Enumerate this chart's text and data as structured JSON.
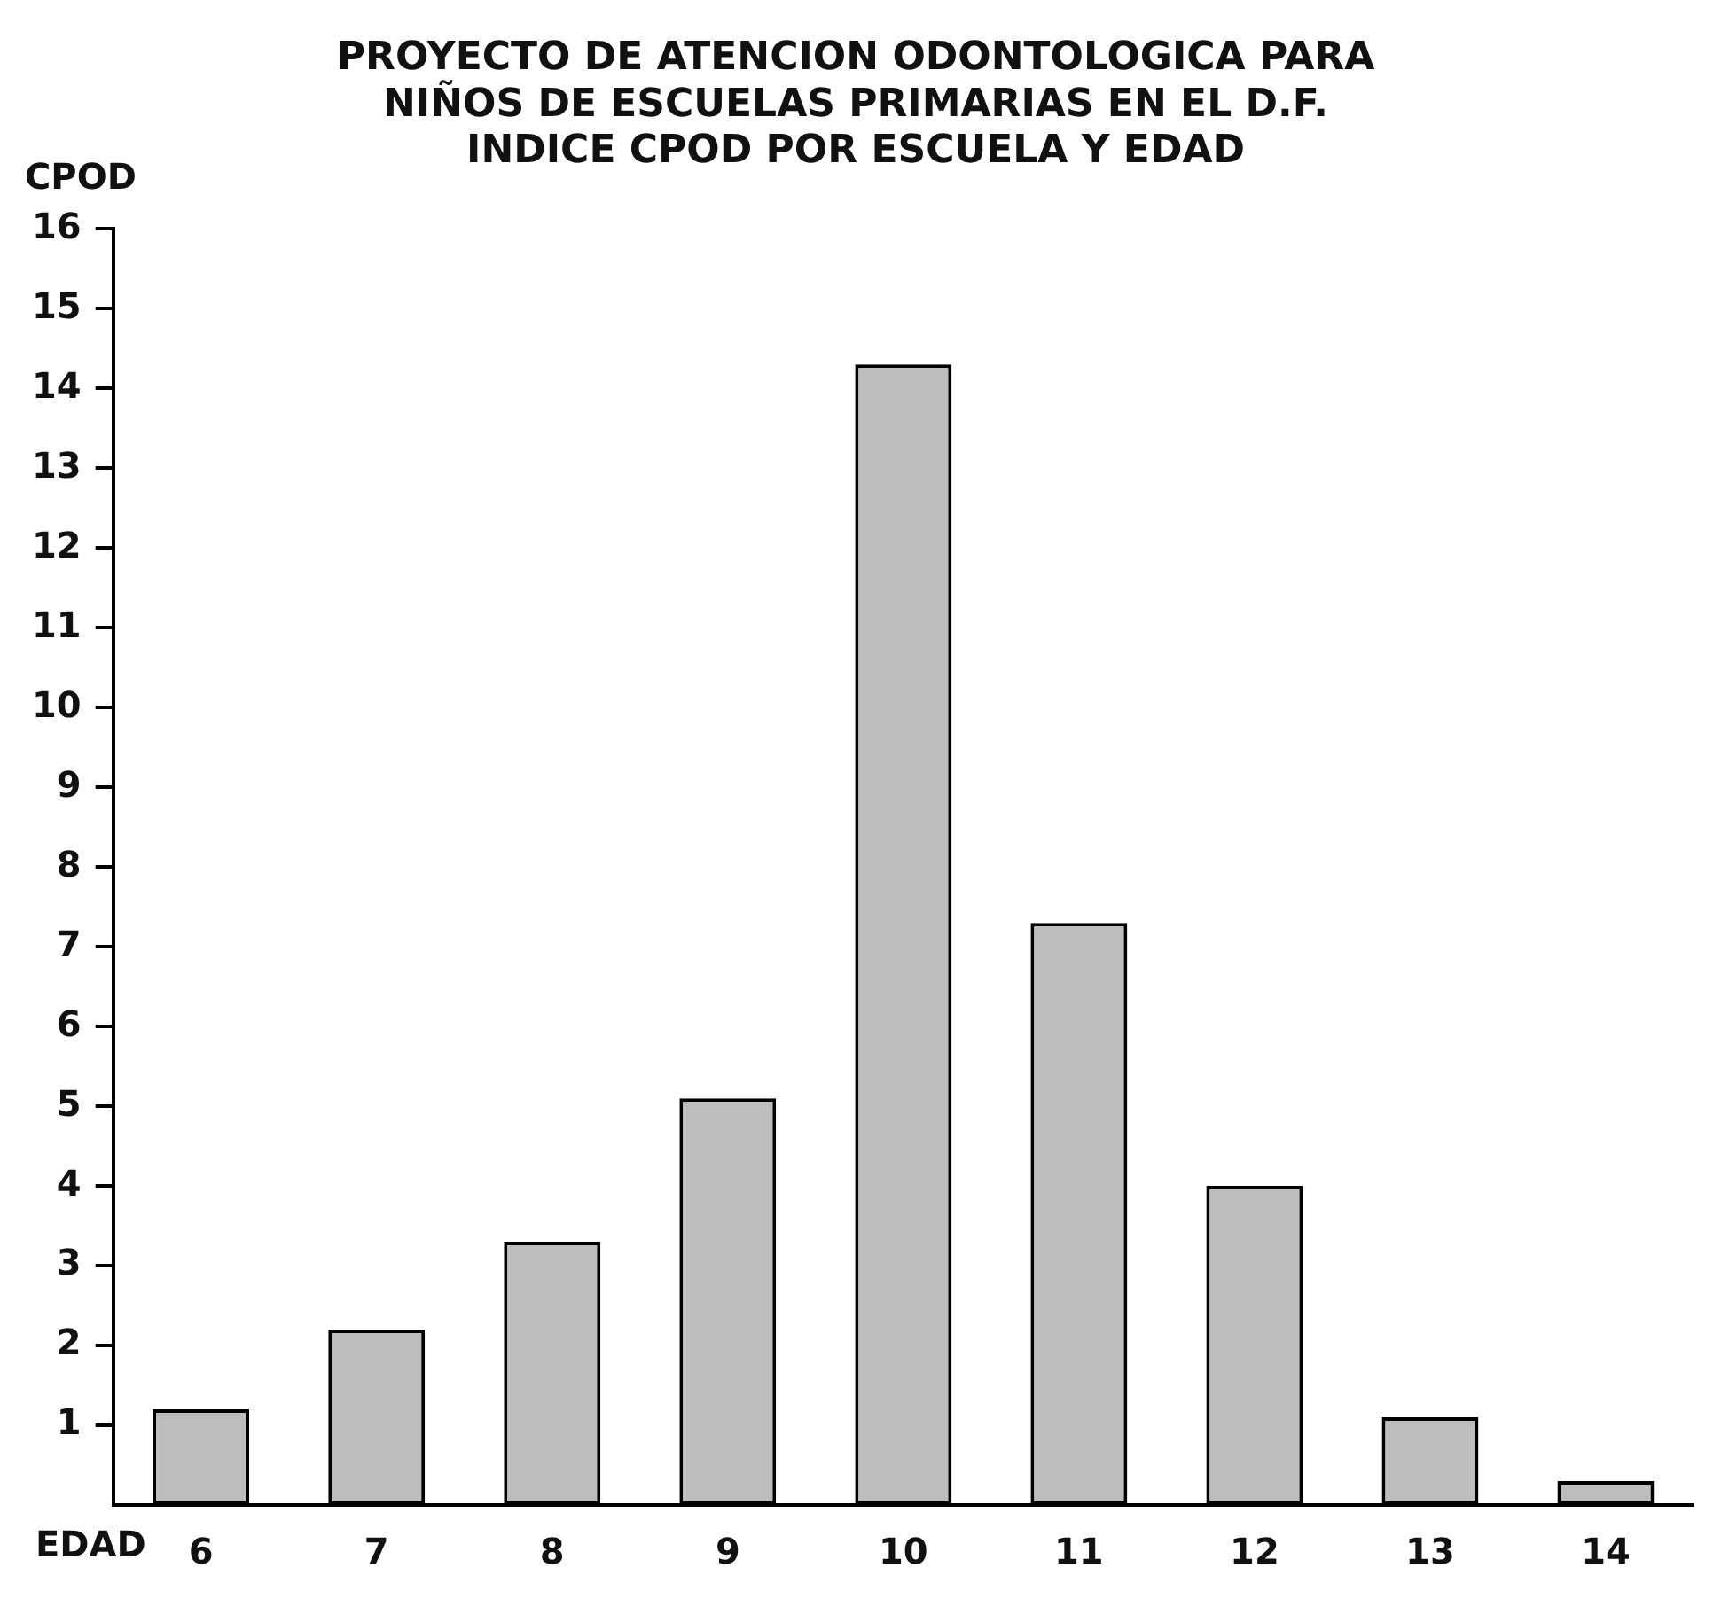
{
  "chart_data": {
    "type": "bar",
    "title": [
      "PROYECTO DE ATENCION ODONTOLOGICA PARA",
      "NIÑOS DE ESCUELAS PRIMARIAS EN EL D.F.",
      "INDICE CPOD POR ESCUELA Y EDAD"
    ],
    "xlabel": "EDAD",
    "ylabel": "CPOD",
    "categories": [
      "6",
      "7",
      "8",
      "9",
      "10",
      "11",
      "12",
      "13",
      "14"
    ],
    "values": [
      1.2,
      2.2,
      3.3,
      5.1,
      14.3,
      7.3,
      4.0,
      1.1,
      0.3
    ],
    "color": "#bdbdbd",
    "ylim": [
      0,
      16
    ],
    "yticks": [
      1,
      2,
      3,
      4,
      5,
      6,
      7,
      8,
      9,
      10,
      11,
      12,
      13,
      14,
      15,
      16
    ],
    "grid": false
  }
}
